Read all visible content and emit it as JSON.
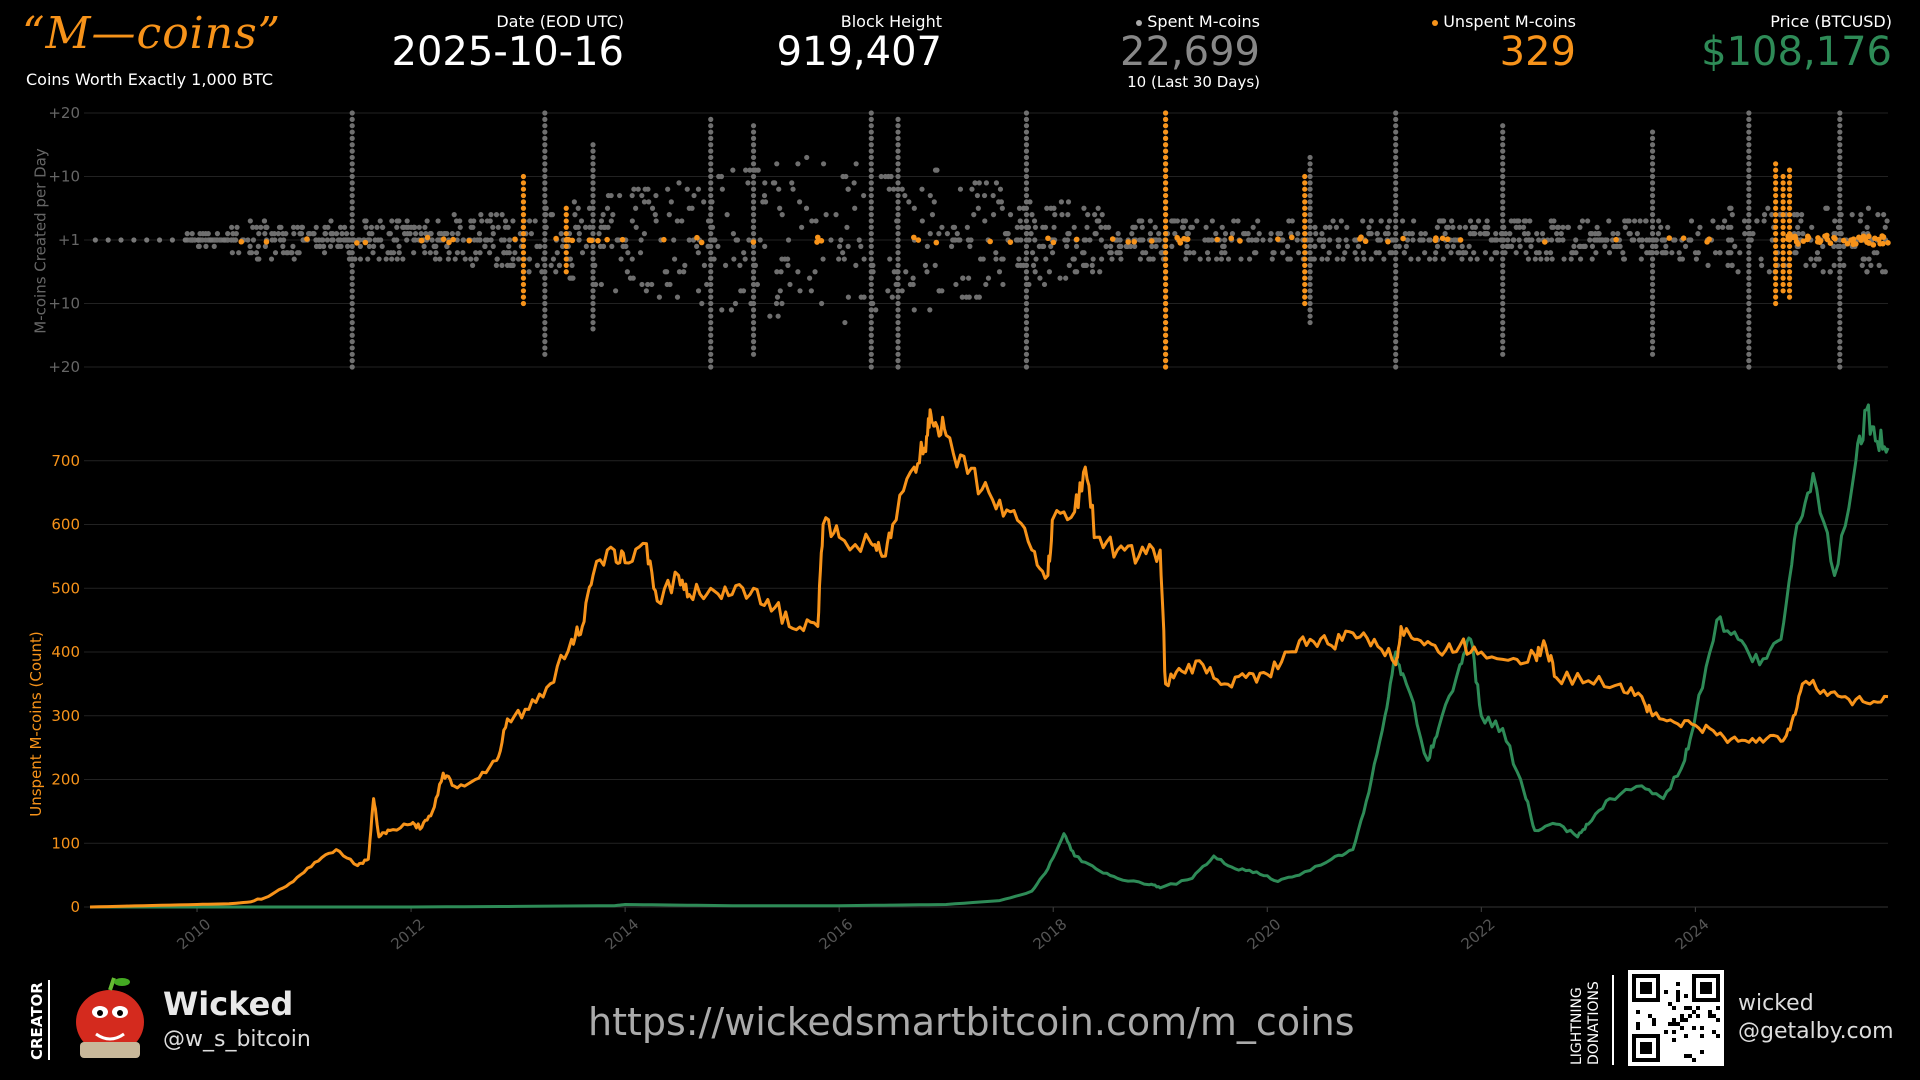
{
  "header": {
    "logo_text": "“M—coins”",
    "tagline": "Coins Worth Exactly 1,000 BTC",
    "date_label": "Date (EOD UTC)",
    "date_value": "2025-10-16",
    "block_label": "Block Height",
    "block_value": "919,407",
    "spent_label": "Spent M-coins",
    "spent_value": "22,699",
    "spent_sub": "10 (Last 30 Days)",
    "unspent_label": "Unspent M-coins",
    "unspent_value": "329",
    "price_label": "Price (BTCUSD)",
    "price_value": "$108,176"
  },
  "colors": {
    "orange": "#f7931a",
    "green": "#2e8b57",
    "gray": "#777777",
    "spent_value": "#888888"
  },
  "footer": {
    "creator_label": "CREATOR",
    "creator_name": "Wicked",
    "creator_handle": "@w_s_bitcoin",
    "url": "https://wickedsmartbitcoin.com/m_coins",
    "lightning_line1": "LIGHTNING",
    "lightning_line2": "DONATIONS",
    "wallet_line1": "wicked",
    "wallet_line2": "@getalby.com",
    "avatar_icon": "apple-avatar-icon",
    "qr_icon": "qr-code-icon"
  },
  "chart_data": [
    {
      "type": "scatter",
      "ylabel": "M-coins Created per Day",
      "ytick_labels": [
        "+20",
        "+10",
        "+1",
        "+10",
        "+20"
      ],
      "xlim": [
        2009.0,
        2025.8
      ],
      "series": [
        {
          "name": "Spent M-coins",
          "color": "#777777"
        },
        {
          "name": "Unspent M-coins",
          "color": "#f7931a"
        }
      ],
      "unspent_spikes": [
        {
          "x": 2013.05,
          "up": 10,
          "down": 10
        },
        {
          "x": 2013.45,
          "up": 5,
          "down": 5
        },
        {
          "x": 2019.05,
          "up": 20,
          "down": 20
        },
        {
          "x": 2020.35,
          "up": 10,
          "down": 10
        },
        {
          "x": 2024.75,
          "up": 12,
          "down": 10
        },
        {
          "x": 2024.82,
          "up": 10,
          "down": 8
        },
        {
          "x": 2024.88,
          "up": 11,
          "down": 9
        }
      ],
      "spent_spikes": [
        {
          "x": 2011.45,
          "up": 20,
          "down": 20
        },
        {
          "x": 2013.25,
          "up": 20,
          "down": 18
        },
        {
          "x": 2013.7,
          "up": 15,
          "down": 14
        },
        {
          "x": 2014.8,
          "up": 19,
          "down": 20
        },
        {
          "x": 2015.2,
          "up": 18,
          "down": 18
        },
        {
          "x": 2016.3,
          "up": 20,
          "down": 20
        },
        {
          "x": 2016.55,
          "up": 19,
          "down": 20
        },
        {
          "x": 2017.75,
          "up": 20,
          "down": 20
        },
        {
          "x": 2019.05,
          "up": 20,
          "down": 20
        },
        {
          "x": 2020.4,
          "up": 13,
          "down": 13
        },
        {
          "x": 2021.2,
          "up": 20,
          "down": 20
        },
        {
          "x": 2022.2,
          "up": 18,
          "down": 18
        },
        {
          "x": 2023.6,
          "up": 17,
          "down": 18
        },
        {
          "x": 2024.5,
          "up": 20,
          "down": 20
        },
        {
          "x": 2025.35,
          "up": 20,
          "down": 20
        }
      ]
    },
    {
      "type": "line",
      "ylabel": "Unspent M-coins (Count)",
      "ylim": [
        0,
        800
      ],
      "yticks": [
        0,
        100,
        200,
        300,
        400,
        500,
        600,
        700
      ],
      "xlim": [
        2009.0,
        2025.8
      ],
      "xtick_labels": [
        "2010",
        "2012",
        "2014",
        "2016",
        "2018",
        "2020",
        "2022",
        "2024"
      ],
      "xticks": [
        2010,
        2012,
        2014,
        2016,
        2018,
        2020,
        2022,
        2024
      ],
      "series": [
        {
          "name": "Unspent M-coins",
          "color": "#f7931a",
          "points": [
            [
              2009.0,
              0
            ],
            [
              2009.5,
              2
            ],
            [
              2010.0,
              4
            ],
            [
              2010.3,
              5
            ],
            [
              2010.5,
              8
            ],
            [
              2010.7,
              20
            ],
            [
              2010.9,
              40
            ],
            [
              2011.1,
              70
            ],
            [
              2011.3,
              90
            ],
            [
              2011.5,
              65
            ],
            [
              2011.6,
              75
            ],
            [
              2011.65,
              170
            ],
            [
              2011.7,
              110
            ],
            [
              2011.8,
              120
            ],
            [
              2012.0,
              130
            ],
            [
              2012.1,
              125
            ],
            [
              2012.2,
              150
            ],
            [
              2012.3,
              210
            ],
            [
              2012.4,
              190
            ],
            [
              2012.6,
              200
            ],
            [
              2012.8,
              230
            ],
            [
              2012.9,
              295
            ],
            [
              2013.1,
              310
            ],
            [
              2013.3,
              350
            ],
            [
              2013.5,
              420
            ],
            [
              2013.6,
              440
            ],
            [
              2013.7,
              520
            ],
            [
              2013.9,
              560
            ],
            [
              2014.0,
              540
            ],
            [
              2014.2,
              570
            ],
            [
              2014.3,
              480
            ],
            [
              2014.5,
              520
            ],
            [
              2014.6,
              490
            ],
            [
              2014.8,
              500
            ],
            [
              2015.0,
              490
            ],
            [
              2015.2,
              500
            ],
            [
              2015.4,
              470
            ],
            [
              2015.6,
              435
            ],
            [
              2015.8,
              440
            ],
            [
              2015.85,
              600
            ],
            [
              2016.0,
              580
            ],
            [
              2016.3,
              570
            ],
            [
              2016.4,
              550
            ],
            [
              2016.5,
              600
            ],
            [
              2016.7,
              690
            ],
            [
              2016.8,
              720
            ],
            [
              2016.85,
              780
            ],
            [
              2016.9,
              760
            ],
            [
              2017.0,
              740
            ],
            [
              2017.2,
              680
            ],
            [
              2017.4,
              650
            ],
            [
              2017.6,
              620
            ],
            [
              2017.8,
              560
            ],
            [
              2017.95,
              520
            ],
            [
              2018.0,
              610
            ],
            [
              2018.2,
              620
            ],
            [
              2018.3,
              690
            ],
            [
              2018.4,
              580
            ],
            [
              2018.6,
              560
            ],
            [
              2018.8,
              550
            ],
            [
              2019.0,
              560
            ],
            [
              2019.05,
              350
            ],
            [
              2019.2,
              370
            ],
            [
              2019.4,
              380
            ],
            [
              2019.6,
              350
            ],
            [
              2019.8,
              360
            ],
            [
              2020.0,
              365
            ],
            [
              2020.2,
              400
            ],
            [
              2020.4,
              420
            ],
            [
              2020.6,
              410
            ],
            [
              2020.8,
              430
            ],
            [
              2021.0,
              420
            ],
            [
              2021.2,
              380
            ],
            [
              2021.25,
              440
            ],
            [
              2021.4,
              420
            ],
            [
              2021.6,
              400
            ],
            [
              2021.8,
              410
            ],
            [
              2022.0,
              400
            ],
            [
              2022.3,
              390
            ],
            [
              2022.5,
              395
            ],
            [
              2022.6,
              410
            ],
            [
              2022.7,
              360
            ],
            [
              2023.0,
              355
            ],
            [
              2023.3,
              350
            ],
            [
              2023.5,
              330
            ],
            [
              2023.6,
              300
            ],
            [
              2023.8,
              290
            ],
            [
              2024.0,
              285
            ],
            [
              2024.2,
              270
            ],
            [
              2024.4,
              260
            ],
            [
              2024.6,
              265
            ],
            [
              2024.8,
              260
            ],
            [
              2024.9,
              290
            ],
            [
              2025.0,
              350
            ],
            [
              2025.2,
              340
            ],
            [
              2025.4,
              330
            ],
            [
              2025.6,
              320
            ],
            [
              2025.8,
              330
            ]
          ]
        },
        {
          "name": "Price (BTCUSD)",
          "color": "#2e8b57",
          "points": [
            [
              2009.0,
              0
            ],
            [
              2010.0,
              0
            ],
            [
              2011.0,
              0
            ],
            [
              2012.0,
              0
            ],
            [
              2013.0,
              1
            ],
            [
              2013.9,
              2
            ],
            [
              2014.0,
              4
            ],
            [
              2014.5,
              3
            ],
            [
              2015.0,
              2
            ],
            [
              2016.0,
              2
            ],
            [
              2016.5,
              3
            ],
            [
              2017.0,
              4
            ],
            [
              2017.5,
              10
            ],
            [
              2017.8,
              25
            ],
            [
              2017.95,
              60
            ],
            [
              2018.1,
              115
            ],
            [
              2018.2,
              80
            ],
            [
              2018.4,
              60
            ],
            [
              2018.6,
              45
            ],
            [
              2018.9,
              35
            ],
            [
              2019.0,
              30
            ],
            [
              2019.3,
              45
            ],
            [
              2019.5,
              80
            ],
            [
              2019.7,
              60
            ],
            [
              2019.9,
              55
            ],
            [
              2020.1,
              40
            ],
            [
              2020.3,
              50
            ],
            [
              2020.6,
              75
            ],
            [
              2020.8,
              90
            ],
            [
              2020.95,
              180
            ],
            [
              2021.1,
              300
            ],
            [
              2021.2,
              400
            ],
            [
              2021.3,
              350
            ],
            [
              2021.5,
              230
            ],
            [
              2021.6,
              280
            ],
            [
              2021.8,
              380
            ],
            [
              2021.9,
              420
            ],
            [
              2022.0,
              300
            ],
            [
              2022.2,
              280
            ],
            [
              2022.4,
              180
            ],
            [
              2022.5,
              120
            ],
            [
              2022.7,
              130
            ],
            [
              2022.9,
              110
            ],
            [
              2023.0,
              130
            ],
            [
              2023.2,
              170
            ],
            [
              2023.5,
              190
            ],
            [
              2023.7,
              170
            ],
            [
              2023.9,
              230
            ],
            [
              2024.0,
              300
            ],
            [
              2024.2,
              450
            ],
            [
              2024.4,
              420
            ],
            [
              2024.6,
              380
            ],
            [
              2024.8,
              420
            ],
            [
              2024.95,
              600
            ],
            [
              2025.1,
              680
            ],
            [
              2025.3,
              520
            ],
            [
              2025.5,
              700
            ],
            [
              2025.6,
              780
            ],
            [
              2025.7,
              730
            ],
            [
              2025.8,
              720
            ]
          ]
        }
      ]
    }
  ]
}
